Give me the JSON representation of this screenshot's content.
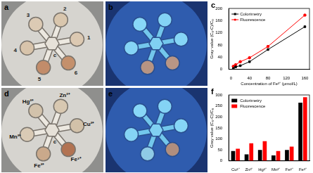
{
  "panels": [
    {
      "panel_label": "a",
      "channels": [
        "1",
        "2",
        "3",
        "4",
        "5",
        "6"
      ],
      "center_label": "c"
    },
    {
      "panel_label": "b"
    },
    {
      "panel_label": "d",
      "channels": [
        "Cu²⁺",
        "Zn²⁺",
        "Hg²⁺",
        "Mn²⁺",
        "Fe²⁺",
        "Fe³⁺"
      ],
      "center_label": "c"
    },
    {
      "panel_label": "e"
    }
  ],
  "chart_data": [
    {
      "panel_label": "c",
      "type": "line",
      "x_label": "Concentration of Fe³⁺ (μmol/L)",
      "y_label": "Gray value (C₀-C)/C₀",
      "x": [
        5,
        10,
        20,
        40,
        80,
        160
      ],
      "series": [
        {
          "name": "Colorimetry",
          "color": "#000000",
          "marker": "square",
          "values": [
            3,
            8,
            12,
            25,
            65,
            140
          ]
        },
        {
          "name": "Fluorescence",
          "color": "#ff0000",
          "marker": "circle",
          "values": [
            10,
            15,
            25,
            38,
            75,
            178
          ]
        }
      ],
      "xlim": [
        -5,
        170
      ],
      "xticks": [
        0,
        40,
        80,
        120,
        160
      ],
      "ylim": [
        0,
        200
      ],
      "yticks": [
        0,
        40,
        80,
        120,
        160,
        200
      ],
      "grid": false,
      "legend": "upper left"
    },
    {
      "panel_label": "f",
      "type": "bar",
      "y_label": "Gray value (C₀-C)/C₀",
      "categories": [
        "Cu²⁺",
        "Zn²⁺",
        "Hg²⁺",
        "Mn²⁺",
        "Fe²⁺",
        "Fe³⁺"
      ],
      "series": [
        {
          "name": "Colorimetry",
          "color": "#000000",
          "values": [
            45,
            30,
            50,
            25,
            50,
            265
          ]
        },
        {
          "name": "Fluorescence",
          "color": "#ff0000",
          "values": [
            55,
            80,
            90,
            45,
            65,
            290
          ]
        }
      ],
      "ylim": [
        0,
        300
      ],
      "yticks": [
        0,
        50,
        100,
        150,
        200,
        250,
        300
      ],
      "grid": false,
      "legend": "upper left"
    }
  ]
}
